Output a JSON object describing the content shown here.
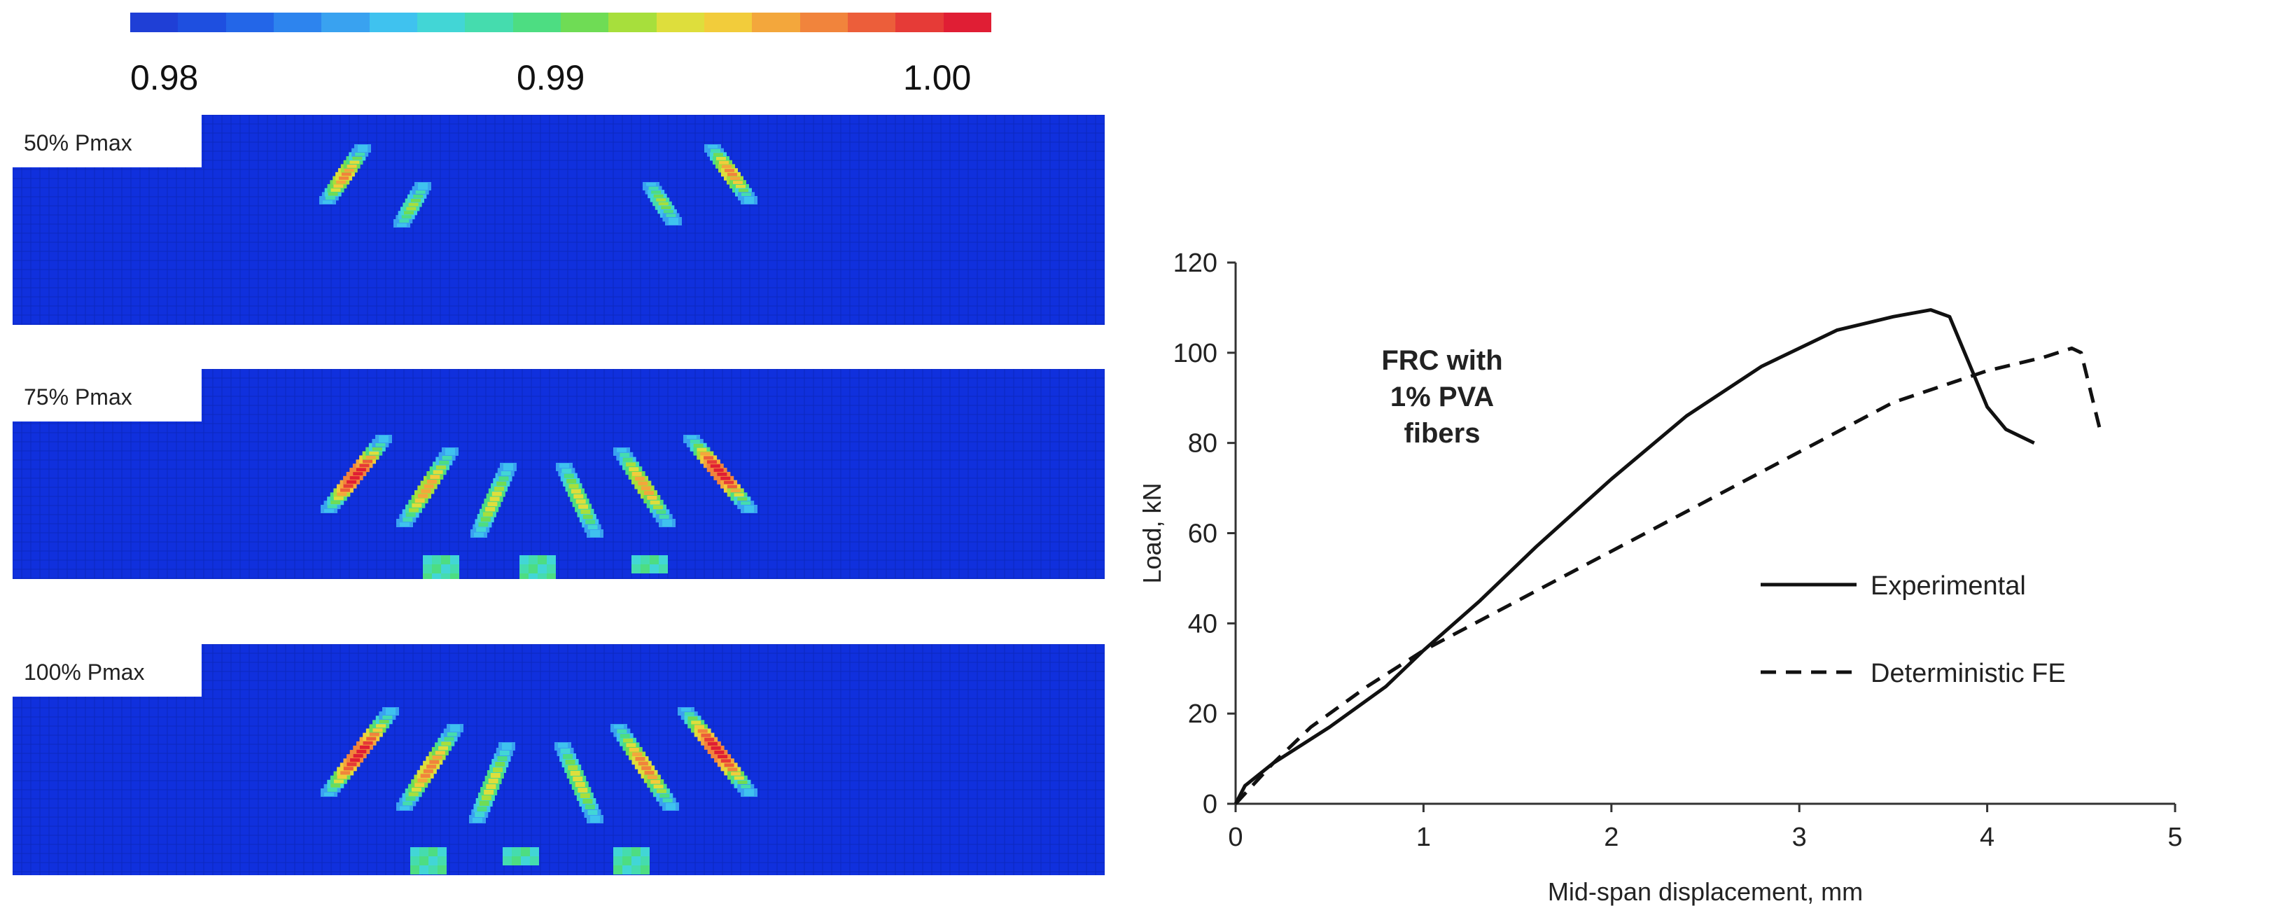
{
  "colorbar": {
    "ticks": [
      "0.98",
      "0.99",
      "1.00"
    ],
    "colors": [
      "#1f3fd6",
      "#1e4fe0",
      "#2366e8",
      "#2d84ee",
      "#39a2f0",
      "#3fc2ef",
      "#42d6d6",
      "#45dcae",
      "#4ddd82",
      "#6fdc55",
      "#a7df3c",
      "#dede3c",
      "#f2cc3b",
      "#f3a73c",
      "#f1843c",
      "#ec5e3a",
      "#e63b37",
      "#e01e34"
    ]
  },
  "contours": [
    {
      "label": "50% Pmax"
    },
    {
      "label": "75% Pmax"
    },
    {
      "label": "100% Pmax"
    }
  ],
  "colors": {
    "mesh_blue": "#1030dd",
    "grid_line": "#0a22a8"
  },
  "chart_data": {
    "type": "line",
    "annotation": [
      "FRC with",
      "1% PVA",
      "fibers"
    ],
    "xlabel": "Mid-span displacement, mm",
    "ylabel": "Load, kN",
    "xlim": [
      0,
      5
    ],
    "ylim": [
      0,
      120
    ],
    "xticks": [
      "0",
      "1",
      "2",
      "3",
      "4",
      "5"
    ],
    "yticks": [
      "0",
      "20",
      "40",
      "60",
      "80",
      "100",
      "120"
    ],
    "legend_position": "right",
    "series": [
      {
        "name": "Experimental",
        "style": "solid",
        "points": [
          [
            0,
            0
          ],
          [
            0.05,
            4
          ],
          [
            0.2,
            9
          ],
          [
            0.5,
            17
          ],
          [
            0.8,
            26
          ],
          [
            1.0,
            34
          ],
          [
            1.3,
            45
          ],
          [
            1.6,
            57
          ],
          [
            2.0,
            72
          ],
          [
            2.4,
            86
          ],
          [
            2.8,
            97
          ],
          [
            3.2,
            105
          ],
          [
            3.5,
            108
          ],
          [
            3.7,
            109.5
          ],
          [
            3.8,
            108
          ],
          [
            3.9,
            98
          ],
          [
            4.0,
            88
          ],
          [
            4.1,
            83
          ],
          [
            4.25,
            80
          ]
        ]
      },
      {
        "name": "Deterministic FE",
        "style": "dashed",
        "points": [
          [
            0,
            0
          ],
          [
            0.2,
            9
          ],
          [
            0.4,
            17
          ],
          [
            0.7,
            26
          ],
          [
            1.0,
            34
          ],
          [
            1.5,
            45
          ],
          [
            2.0,
            56
          ],
          [
            2.5,
            67
          ],
          [
            3.0,
            78
          ],
          [
            3.5,
            89
          ],
          [
            4.0,
            96
          ],
          [
            4.3,
            99
          ],
          [
            4.45,
            101
          ],
          [
            4.5,
            100
          ],
          [
            4.6,
            83
          ]
        ]
      }
    ]
  }
}
